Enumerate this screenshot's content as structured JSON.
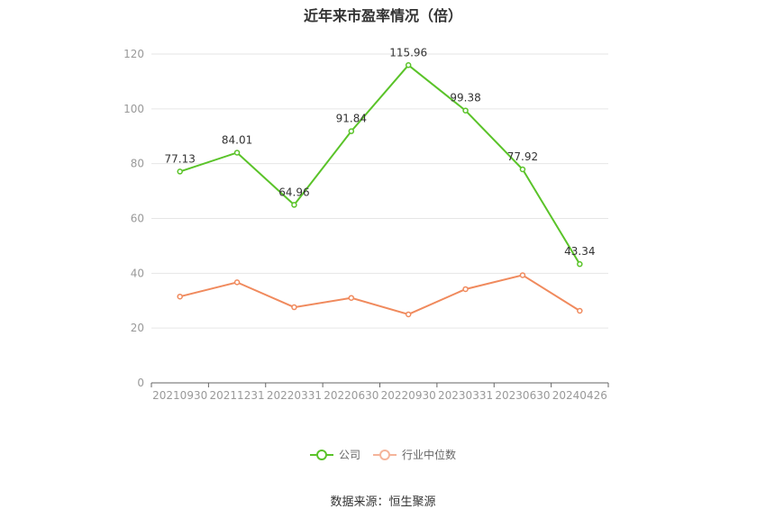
{
  "chart_data": {
    "type": "line",
    "title": "近年来市盈率情况（倍）",
    "categories": [
      "20210930",
      "20211231",
      "20220331",
      "20220630",
      "20220930",
      "20230331",
      "20230630",
      "20240426"
    ],
    "series": [
      {
        "name": "公司",
        "color": "#5ac329",
        "values": [
          77.13,
          84.01,
          64.96,
          91.84,
          115.96,
          99.38,
          77.92,
          43.34
        ],
        "labels": [
          "77.13",
          "84.01",
          "64.96",
          "91.84",
          "115.96",
          "99.38",
          "77.92",
          "43.34"
        ]
      },
      {
        "name": "行业中位数",
        "color": "#f08a5d",
        "values": [
          31.5,
          36.7,
          27.6,
          31.0,
          25.0,
          34.2,
          39.3,
          26.3
        ]
      }
    ],
    "ylim": [
      0,
      120
    ],
    "yticks": [
      "0",
      "20",
      "40",
      "60",
      "80",
      "100",
      "120"
    ],
    "grid": true,
    "legend_position": "bottom-center"
  },
  "source": "数据来源：恒生聚源"
}
